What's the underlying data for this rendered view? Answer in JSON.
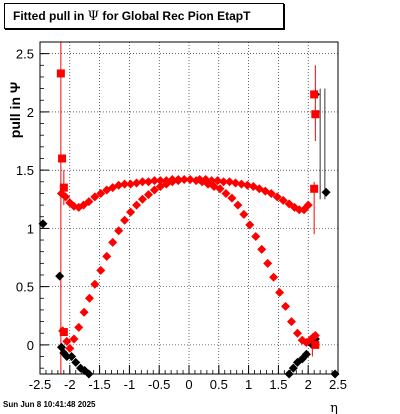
{
  "title": {
    "prefix": "Fitted pull in ",
    "symbol": "Ψ",
    "suffix": "  for Global Rec Pion EtapT"
  },
  "footer": "Sun Jun  8 10:41:48 2025",
  "colors": {
    "red": "#ff0000",
    "black": "#000000",
    "grid": "#000000"
  },
  "chart_data": {
    "type": "scatter",
    "title": "Fitted pull in Ψ  for Global Rec Pion EtapT",
    "xlabel": "η",
    "ylabel": "pull in Ψ",
    "xlim": [
      -2.5,
      2.5
    ],
    "ylim": [
      -0.25,
      2.6
    ],
    "xticks": [
      "-2.5",
      "-2",
      "-1.5",
      "-1",
      "-0.5",
      "0",
      "0.5",
      "1",
      "1.5",
      "2",
      "2.5"
    ],
    "yticks": [
      "0",
      "0.5",
      "1",
      "1.5",
      "2",
      "2.5"
    ],
    "grid": true,
    "series": [
      {
        "marker": "diamond",
        "color": "black",
        "points": [
          [
            -2.45,
            1.04
          ],
          [
            -2.17,
            0.59
          ],
          [
            -2.14,
            -0.02
          ],
          [
            -2.1,
            -0.07
          ],
          [
            -2.05,
            -0.1
          ],
          [
            -1.97,
            -0.1
          ],
          [
            -1.9,
            -0.15
          ],
          [
            -1.82,
            -0.2
          ],
          [
            -1.75,
            -0.22
          ],
          [
            -1.68,
            -0.25
          ],
          [
            1.68,
            -0.25
          ],
          [
            1.75,
            -0.2
          ],
          [
            1.82,
            -0.15
          ],
          [
            1.9,
            -0.12
          ],
          [
            1.97,
            -0.08
          ],
          [
            2.05,
            0.01
          ],
          [
            2.12,
            0.05
          ],
          [
            2.3,
            1.31
          ],
          [
            2.45,
            -0.25
          ],
          [
            2.12,
            2.15
          ]
        ]
      },
      {
        "marker": "diamond",
        "color": "red",
        "points": [
          [
            -2.12,
            0.12
          ],
          [
            -2.05,
            0.03
          ],
          [
            -2.0,
            -0.03
          ],
          [
            -1.93,
            0.05
          ],
          [
            -1.85,
            0.15
          ],
          [
            -1.76,
            0.28
          ],
          [
            -1.67,
            0.4
          ],
          [
            -1.58,
            0.52
          ],
          [
            -1.48,
            0.64
          ],
          [
            -1.38,
            0.76
          ],
          [
            -1.28,
            0.88
          ],
          [
            -1.18,
            0.98
          ],
          [
            -1.08,
            1.07
          ],
          [
            -0.98,
            1.14
          ],
          [
            -0.88,
            1.2
          ],
          [
            -0.78,
            1.25
          ],
          [
            -0.68,
            1.29
          ],
          [
            -0.58,
            1.33
          ],
          [
            -0.48,
            1.36
          ],
          [
            -0.38,
            1.38
          ],
          [
            -0.28,
            1.4
          ],
          [
            -0.18,
            1.41
          ],
          [
            -0.08,
            1.42
          ],
          [
            0.02,
            1.42
          ],
          [
            0.12,
            1.41
          ],
          [
            0.22,
            1.4
          ],
          [
            0.32,
            1.38
          ],
          [
            0.42,
            1.36
          ],
          [
            0.52,
            1.34
          ],
          [
            0.62,
            1.3
          ],
          [
            0.72,
            1.26
          ],
          [
            0.82,
            1.2
          ],
          [
            0.92,
            1.12
          ],
          [
            1.02,
            1.03
          ],
          [
            1.12,
            0.93
          ],
          [
            1.22,
            0.82
          ],
          [
            1.32,
            0.7
          ],
          [
            1.42,
            0.58
          ],
          [
            1.52,
            0.45
          ],
          [
            1.62,
            0.33
          ],
          [
            1.72,
            0.2
          ],
          [
            1.82,
            0.1
          ],
          [
            1.9,
            0.04
          ],
          [
            1.97,
            0.02
          ],
          [
            2.05,
            0.05
          ],
          [
            2.12,
            0.08
          ],
          [
            -2.14,
            1.3
          ],
          [
            -2.07,
            1.27
          ],
          [
            -2.0,
            1.22
          ],
          [
            -1.93,
            1.19
          ],
          [
            -1.85,
            1.18
          ],
          [
            -1.77,
            1.2
          ],
          [
            -1.68,
            1.23
          ],
          [
            -1.58,
            1.27
          ],
          [
            -1.48,
            1.3
          ],
          [
            -1.38,
            1.33
          ],
          [
            -1.28,
            1.35
          ],
          [
            -1.18,
            1.37
          ],
          [
            -1.08,
            1.38
          ],
          [
            -0.98,
            1.38
          ],
          [
            -0.88,
            1.39
          ],
          [
            -0.78,
            1.4
          ],
          [
            -0.68,
            1.4
          ],
          [
            -0.58,
            1.41
          ],
          [
            -0.48,
            1.41
          ],
          [
            -0.38,
            1.41
          ],
          [
            -0.28,
            1.42
          ],
          [
            -0.18,
            1.42
          ],
          [
            0.18,
            1.42
          ],
          [
            0.28,
            1.42
          ],
          [
            0.38,
            1.41
          ],
          [
            0.48,
            1.41
          ],
          [
            0.58,
            1.4
          ],
          [
            0.68,
            1.4
          ],
          [
            0.78,
            1.39
          ],
          [
            0.88,
            1.38
          ],
          [
            0.98,
            1.37
          ],
          [
            1.08,
            1.36
          ],
          [
            1.18,
            1.34
          ],
          [
            1.28,
            1.32
          ],
          [
            1.38,
            1.3
          ],
          [
            1.48,
            1.27
          ],
          [
            1.58,
            1.24
          ],
          [
            1.68,
            1.21
          ],
          [
            1.77,
            1.18
          ],
          [
            1.85,
            1.16
          ],
          [
            1.93,
            1.16
          ],
          [
            2.0,
            1.2
          ]
        ]
      },
      {
        "marker": "square",
        "color": "red",
        "points": [
          [
            -2.15,
            2.33
          ],
          [
            -2.13,
            1.6
          ],
          [
            -2.1,
            1.35
          ],
          [
            -2.1,
            0.11
          ],
          [
            2.12,
            1.98
          ],
          [
            2.1,
            1.34
          ],
          [
            2.12,
            0.0
          ],
          [
            2.1,
            2.15
          ]
        ]
      }
    ],
    "error_bars": [
      [
        -2.15,
        -0.25,
        2.6
      ],
      [
        -2.1,
        1.2,
        1.5
      ],
      [
        2.12,
        1.75,
        2.4
      ],
      [
        2.1,
        0.95,
        1.4
      ],
      [
        2.07,
        -0.1,
        0.1
      ]
    ]
  }
}
